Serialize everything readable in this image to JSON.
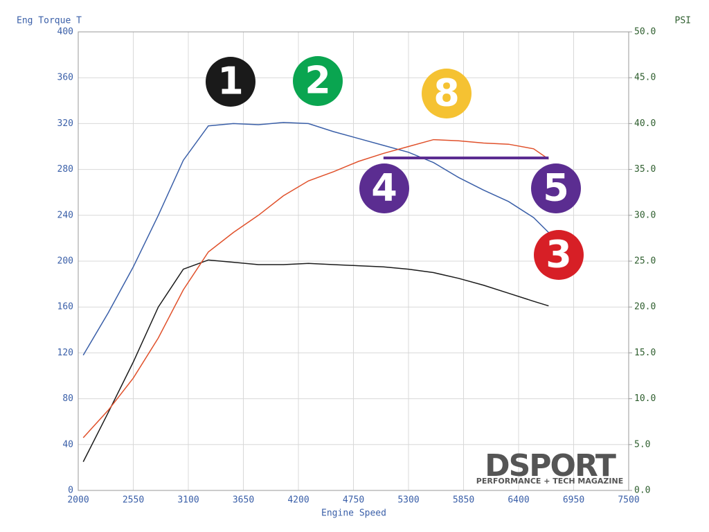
{
  "chart_data": {
    "type": "line",
    "y_label": "Eng Torque T",
    "y2_label": "PSI",
    "x_label": "Engine Speed",
    "x": [
      2050,
      2300,
      2550,
      2800,
      3050,
      3300,
      3550,
      3800,
      4050,
      4300,
      4550,
      4800,
      5050,
      5300,
      5550,
      5800,
      6050,
      6300,
      6550,
      6700
    ],
    "series": [
      {
        "color": "#3a5fa8",
        "values": [
          118,
          155,
          195,
          240,
          288,
          318,
          320,
          319,
          321,
          320,
          313,
          307,
          301,
          295,
          286,
          273,
          262,
          252,
          238,
          225
        ]
      },
      {
        "color": "#1a1a1a",
        "values": [
          25,
          68,
          112,
          160,
          193,
          201,
          199,
          197,
          197,
          198,
          197,
          196,
          195,
          193,
          190,
          185,
          179,
          172,
          165,
          161
        ]
      },
      {
        "color": "#e0502a",
        "values": [
          46,
          70,
          98,
          133,
          175,
          208,
          225,
          240,
          257,
          270,
          278,
          287,
          294,
          300,
          306,
          305,
          303,
          302,
          298,
          289
        ]
      },
      {
        "color": "#5b2d91",
        "x": [
          5050,
          6700
        ],
        "values": [
          290,
          290
        ]
      }
    ],
    "xlim": [
      2000,
      7500
    ],
    "xticks": [
      2000,
      2550,
      3100,
      3650,
      4200,
      4750,
      5300,
      5850,
      6400,
      6950,
      7500
    ],
    "ylim": [
      0,
      400
    ],
    "yticks": [
      0,
      40,
      80,
      120,
      160,
      200,
      240,
      280,
      320,
      360,
      400
    ],
    "y2lim": [
      0,
      50
    ],
    "y2ticks": [
      {
        "value": 0,
        "label": "0.0"
      },
      {
        "value": 5,
        "label": "5.0"
      },
      {
        "value": 10,
        "label": "10.0"
      },
      {
        "value": 15,
        "label": "15.0"
      },
      {
        "value": 20,
        "label": "20.0"
      },
      {
        "value": 25,
        "label": "25.0"
      },
      {
        "value": 30,
        "label": "30.0"
      },
      {
        "value": 35,
        "label": "35.0"
      },
      {
        "value": 40,
        "label": "40.0"
      },
      {
        "value": 45,
        "label": "45.0"
      },
      {
        "value": 50,
        "label": "50.0"
      }
    ],
    "grid": true,
    "annotations": [
      {
        "text": "1",
        "color": "#1a1a1a"
      },
      {
        "text": "2",
        "color": "#0aa550"
      },
      {
        "text": "8",
        "color": "#f5c232"
      },
      {
        "text": "4",
        "color": "#5b2d91"
      },
      {
        "text": "5",
        "color": "#5b2d91"
      },
      {
        "text": "3",
        "color": "#d71f26"
      }
    ],
    "logo": {
      "name": "DSPORT",
      "tagline": "PERFORMANCE + TECH MAGAZINE"
    }
  }
}
